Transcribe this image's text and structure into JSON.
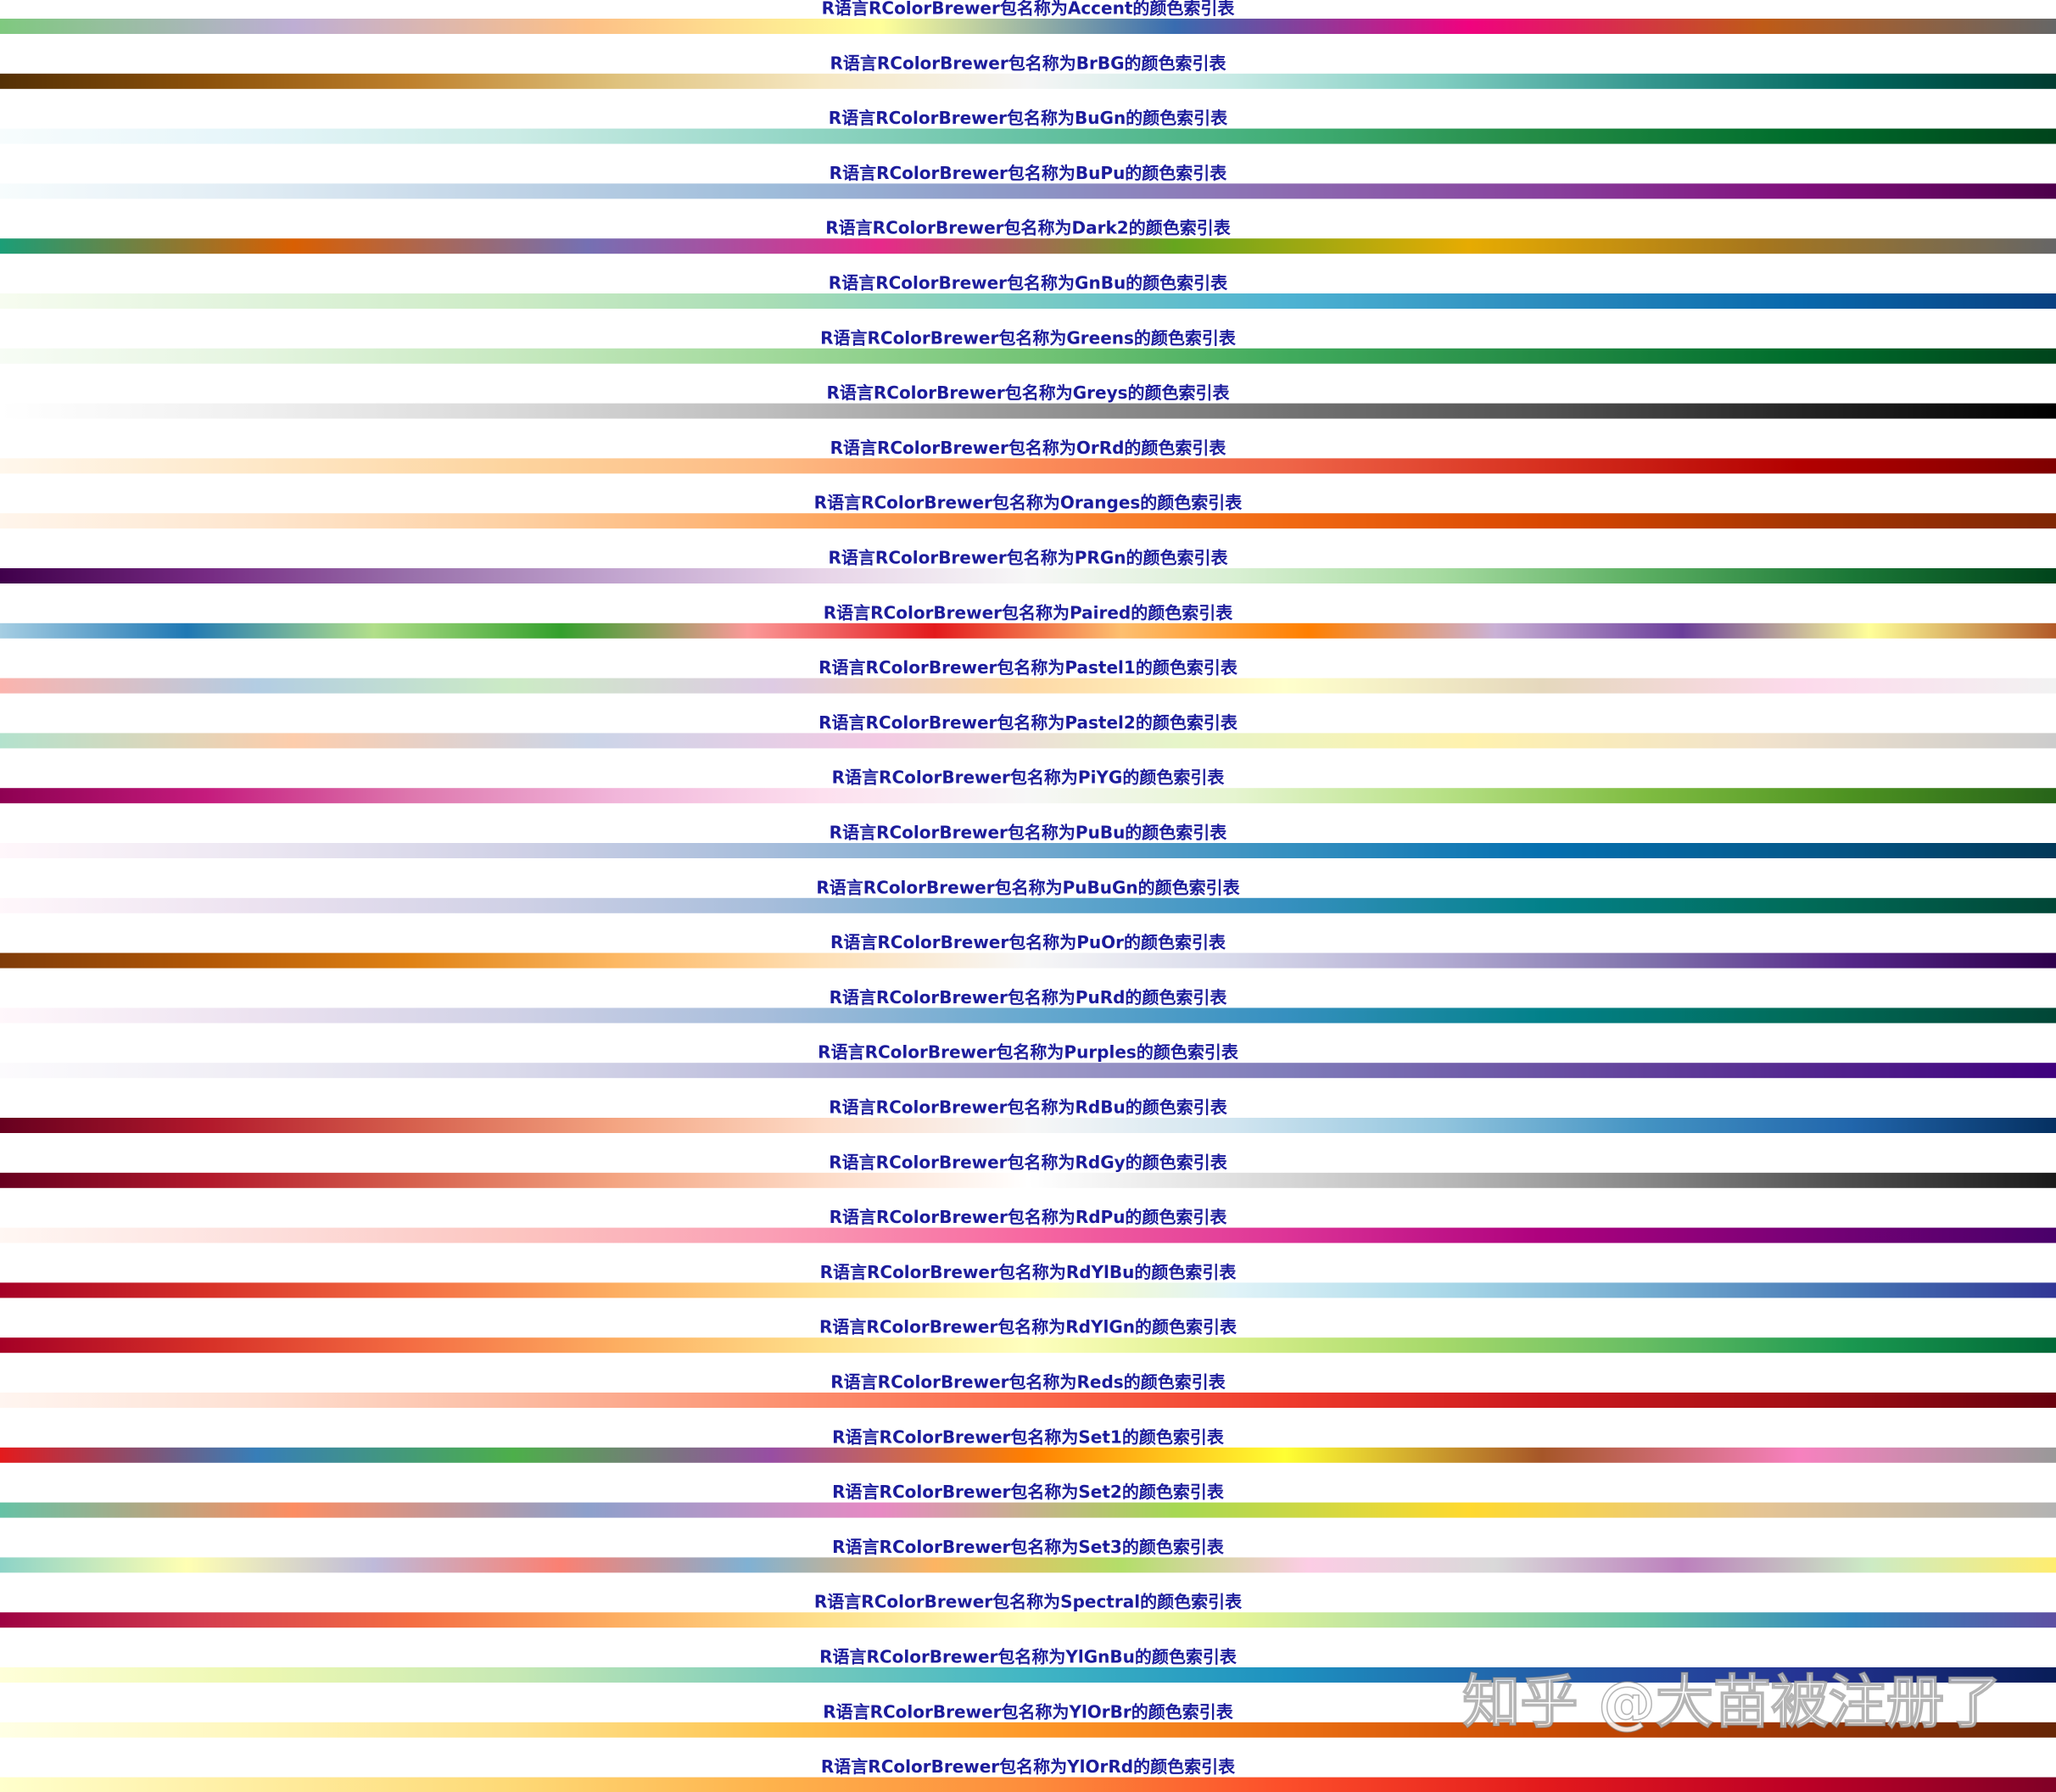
{
  "rows": [
    {
      "title": "R语言RColorBrewer包名称为Accent的颜色索引表",
      "colors": [
        "#7FC97F",
        "#BEAED4",
        "#FDC086",
        "#FFFF99",
        "#386CB0",
        "#F0027F",
        "#BF5B17",
        "#666666"
      ]
    },
    {
      "title": "R语言RColorBrewer包名称为BrBG的颜色索引表",
      "colors": [
        "#543005",
        "#8C510A",
        "#BF812D",
        "#DFC27D",
        "#F6E8C3",
        "#F5F5F5",
        "#C7EAE5",
        "#80CDC1",
        "#35978F",
        "#01665E",
        "#003C30"
      ]
    },
    {
      "title": "R语言RColorBrewer包名称为BuGn的颜色索引表",
      "colors": [
        "#F7FCFD",
        "#E5F5F9",
        "#CCECE6",
        "#99D8C9",
        "#66C2A4",
        "#41AE76",
        "#238B45",
        "#006D2C",
        "#00441B"
      ]
    },
    {
      "title": "R语言RColorBrewer包名称为BuPu的颜色索引表",
      "colors": [
        "#F7FCFD",
        "#E0ECF4",
        "#BFD3E6",
        "#9EBCDA",
        "#8C96C6",
        "#8C6BB1",
        "#88419D",
        "#810F7C",
        "#4D004B"
      ]
    },
    {
      "title": "R语言RColorBrewer包名称为Dark2的颜色索引表",
      "colors": [
        "#1B9E77",
        "#D95F02",
        "#7570B3",
        "#E7298A",
        "#66A61E",
        "#E6AB02",
        "#A6761D",
        "#666666"
      ]
    },
    {
      "title": "R语言RColorBrewer包名称为GnBu的颜色索引表",
      "colors": [
        "#F7FCF0",
        "#E0F3DB",
        "#CCEBC5",
        "#A8DDB5",
        "#7BCCC4",
        "#4EB3D3",
        "#2B8CBE",
        "#0868AC",
        "#084081"
      ]
    },
    {
      "title": "R语言RColorBrewer包名称为Greens的颜色索引表",
      "colors": [
        "#F7FCF5",
        "#E5F5E0",
        "#C7E9C0",
        "#A1D99B",
        "#74C476",
        "#41AB5D",
        "#238B45",
        "#006D2C",
        "#00441B"
      ]
    },
    {
      "title": "R语言RColorBrewer包名称为Greys的颜色索引表",
      "colors": [
        "#FFFFFF",
        "#F0F0F0",
        "#D9D9D9",
        "#BDBDBD",
        "#969696",
        "#737373",
        "#525252",
        "#252525",
        "#000000"
      ]
    },
    {
      "title": "R语言RColorBrewer包名称为OrRd的颜色索引表",
      "colors": [
        "#FFF7EC",
        "#FEE8C8",
        "#FDD49E",
        "#FDBB84",
        "#FC8D59",
        "#EF6548",
        "#D7301F",
        "#B30000",
        "#7F0000"
      ]
    },
    {
      "title": "R语言RColorBrewer包名称为Oranges的颜色索引表",
      "colors": [
        "#FFF5EB",
        "#FEE6CE",
        "#FDD0A2",
        "#FDAE6B",
        "#FD8D3C",
        "#F16913",
        "#D94801",
        "#A63603",
        "#7F2704"
      ]
    },
    {
      "title": "R语言RColorBrewer包名称为PRGn的颜色索引表",
      "colors": [
        "#40004B",
        "#762A83",
        "#9970AB",
        "#C2A5CF",
        "#E7D4E8",
        "#F7F7F7",
        "#D9F0D3",
        "#A6DBA0",
        "#5AAE61",
        "#1B7837",
        "#00441B"
      ]
    },
    {
      "title": "R语言RColorBrewer包名称为Paired的颜色索引表",
      "colors": [
        "#A6CEE3",
        "#1F78B4",
        "#B2DF8A",
        "#33A02C",
        "#FB9A99",
        "#E31A1C",
        "#FDBF6F",
        "#FF7F00",
        "#CAB2D6",
        "#6A3D9A",
        "#FFFF99",
        "#B15928"
      ]
    },
    {
      "title": "R语言RColorBrewer包名称为Pastel1的颜色索引表",
      "colors": [
        "#FBB4AE",
        "#B3CDE3",
        "#CCEBC5",
        "#DECBE4",
        "#FED9A6",
        "#FFFFCC",
        "#E5D8BD",
        "#FDDAEC",
        "#F2F2F2"
      ]
    },
    {
      "title": "R语言RColorBrewer包名称为Pastel2的颜色索引表",
      "colors": [
        "#B3E2CD",
        "#FDCDAC",
        "#CBD5E8",
        "#F4CAE4",
        "#E6F5C9",
        "#FFF2AE",
        "#F1E2CC",
        "#CCCCCC"
      ]
    },
    {
      "title": "R语言RColorBrewer包名称为PiYG的颜色索引表",
      "colors": [
        "#8E0152",
        "#C51B7D",
        "#DE77AE",
        "#F1B6DA",
        "#FDE0EF",
        "#F7F7F7",
        "#E6F5D0",
        "#B8E186",
        "#7FBC41",
        "#4D9221",
        "#276419"
      ]
    },
    {
      "title": "R语言RColorBrewer包名称为PuBu的颜色索引表",
      "colors": [
        "#FFF7FB",
        "#ECE7F2",
        "#D0D1E6",
        "#A6BDDB",
        "#74A9CF",
        "#3690C0",
        "#0570B0",
        "#045A8D",
        "#023858"
      ]
    },
    {
      "title": "R语言RColorBrewer包名称为PuBuGn的颜色索引表",
      "colors": [
        "#FFF7FB",
        "#ECE2F0",
        "#D0D1E6",
        "#A6BDDB",
        "#67A9CF",
        "#3690C0",
        "#02818A",
        "#016C59",
        "#014636"
      ]
    },
    {
      "title": "R语言RColorBrewer包名称为PuOr的颜色索引表",
      "colors": [
        "#7F3B08",
        "#B35806",
        "#E08214",
        "#FDB863",
        "#FEE0B6",
        "#F7F7F7",
        "#D8DAEB",
        "#B2ABD2",
        "#8073AC",
        "#542788",
        "#2D004B"
      ]
    },
    {
      "title": "R语言RColorBrewer包名称为PuRd的颜色索引表",
      "colors": [
        "#FFF7FB",
        "#ECE2F0",
        "#D0D1E6",
        "#A6BDDB",
        "#67A9CF",
        "#3690C0",
        "#02818A",
        "#016C59",
        "#014636"
      ]
    },
    {
      "title": "R语言RColorBrewer包名称为Purples的颜色索引表",
      "colors": [
        "#FCFBFD",
        "#EFEDF5",
        "#DADAEB",
        "#BCBDDC",
        "#9E9AC8",
        "#807DBA",
        "#6A51A3",
        "#54278F",
        "#3F007D"
      ]
    },
    {
      "title": "R语言RColorBrewer包名称为RdBu的颜色索引表",
      "colors": [
        "#67001F",
        "#B2182B",
        "#D6604D",
        "#F4A582",
        "#FDDBC7",
        "#F7F7F7",
        "#D1E5F0",
        "#92C5DE",
        "#4393C3",
        "#2166AC",
        "#053061"
      ]
    },
    {
      "title": "R语言RColorBrewer包名称为RdGy的颜色索引表",
      "colors": [
        "#67001F",
        "#B2182B",
        "#D6604D",
        "#F4A582",
        "#FDDBC7",
        "#FFFFFF",
        "#E0E0E0",
        "#BABABA",
        "#878787",
        "#4D4D4D",
        "#1A1A1A"
      ]
    },
    {
      "title": "R语言RColorBrewer包名称为RdPu的颜色索引表",
      "colors": [
        "#FFF7F3",
        "#FDE0DD",
        "#FCC5C0",
        "#FA9FB5",
        "#F768A1",
        "#DD3497",
        "#AE017E",
        "#7A0177",
        "#49006A"
      ]
    },
    {
      "title": "R语言RColorBrewer包名称为RdYlBu的颜色索引表",
      "colors": [
        "#A50026",
        "#D73027",
        "#F46D43",
        "#FDAE61",
        "#FEE090",
        "#FFFFBF",
        "#E0F3F8",
        "#ABD9E9",
        "#74ADD1",
        "#4575B4",
        "#313695"
      ]
    },
    {
      "title": "R语言RColorBrewer包名称为RdYlGn的颜色索引表",
      "colors": [
        "#A50026",
        "#D73027",
        "#F46D43",
        "#FDAE61",
        "#FEE08B",
        "#FFFFBF",
        "#D9EF8B",
        "#A6D96A",
        "#66BD63",
        "#1A9850",
        "#006837"
      ]
    },
    {
      "title": "R语言RColorBrewer包名称为Reds的颜色索引表",
      "colors": [
        "#FFF5F0",
        "#FEE0D2",
        "#FCBBA1",
        "#FC9272",
        "#FB6A4A",
        "#EF3B2C",
        "#CB181D",
        "#A50F15",
        "#67000D"
      ]
    },
    {
      "title": "R语言RColorBrewer包名称为Set1的颜色索引表",
      "colors": [
        "#E41A1C",
        "#377EB8",
        "#4DAF4A",
        "#984EA3",
        "#FF7F00",
        "#FFFF33",
        "#A65628",
        "#F781BF",
        "#999999"
      ]
    },
    {
      "title": "R语言RColorBrewer包名称为Set2的颜色索引表",
      "colors": [
        "#66C2A5",
        "#FC8D62",
        "#8DA0CB",
        "#E78AC3",
        "#A6D854",
        "#FFD92F",
        "#E5C494",
        "#B3B3B3"
      ]
    },
    {
      "title": "R语言RColorBrewer包名称为Set3的颜色索引表",
      "colors": [
        "#8DD3C7",
        "#FFFFB3",
        "#BEBADA",
        "#FB8072",
        "#80B1D3",
        "#FDB462",
        "#B3DE69",
        "#FCCDE5",
        "#D9D9D9",
        "#BC80BD",
        "#CCEBC5",
        "#FFED6F"
      ]
    },
    {
      "title": "R语言RColorBrewer包名称为Spectral的颜色索引表",
      "colors": [
        "#9E0142",
        "#D53E4F",
        "#F46D43",
        "#FDAE61",
        "#FEE08B",
        "#FFFFBF",
        "#E6F598",
        "#ABDDA4",
        "#66C2A5",
        "#3288BD",
        "#5E4FA2"
      ]
    },
    {
      "title": "R语言RColorBrewer包名称为YlGnBu的颜色索引表",
      "colors": [
        "#FFFFD9",
        "#EDF8B1",
        "#C7E9B4",
        "#7FCDBB",
        "#41B6C4",
        "#1D91C0",
        "#225EA8",
        "#253494",
        "#081D58"
      ]
    },
    {
      "title": "R语言RColorBrewer包名称为YlOrBr的颜色索引表",
      "colors": [
        "#FFFFE5",
        "#FFF7BC",
        "#FEE391",
        "#FEC44F",
        "#FE9929",
        "#EC7014",
        "#CC4C02",
        "#993404",
        "#662506"
      ]
    },
    {
      "title": "R语言RColorBrewer包名称为YlOrRd的颜色索引表",
      "colors": [
        "#FFFFCC",
        "#FFEDA0",
        "#FED976",
        "#FEB24C",
        "#FD8D3C",
        "#FC4E2A",
        "#E31A1C",
        "#BD0026",
        "#800026"
      ]
    }
  ],
  "watermark": "知乎 @大苗被注册了"
}
